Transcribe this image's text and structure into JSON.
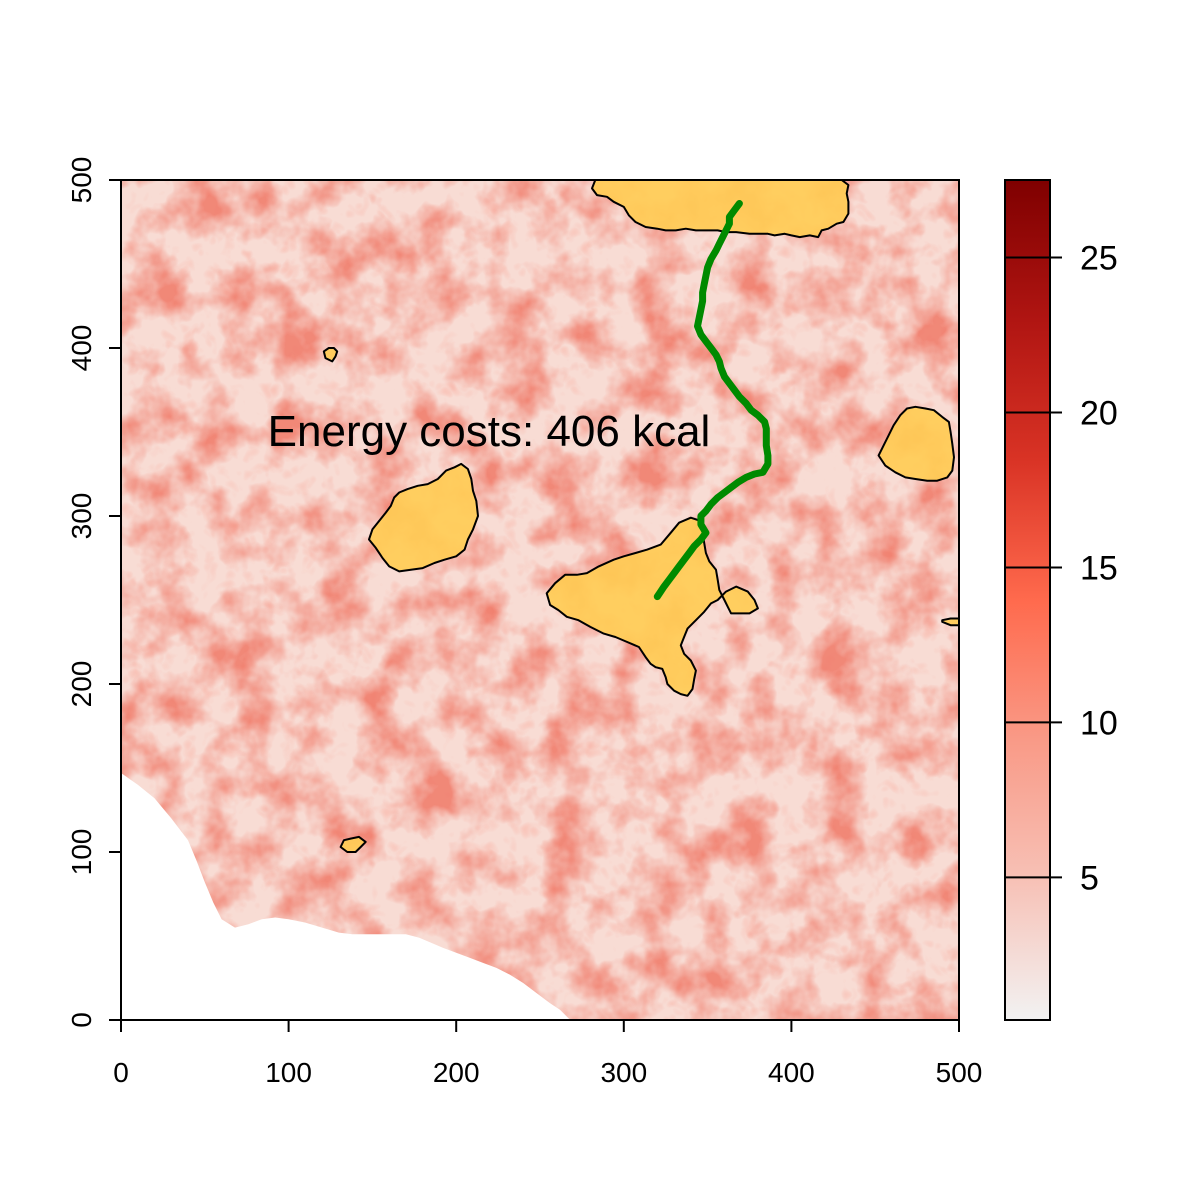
{
  "chart_data": {
    "type": "heatmap",
    "title": "",
    "xlabel": "",
    "ylabel": "",
    "xlim": [
      0,
      500
    ],
    "ylim": [
      0,
      500
    ],
    "x_ticks": [
      0,
      100,
      200,
      300,
      400,
      500
    ],
    "y_ticks": [
      0,
      100,
      200,
      300,
      400,
      500
    ],
    "x_tick_labels": [
      "0",
      "100",
      "200",
      "300",
      "400",
      "500"
    ],
    "y_tick_labels": [
      "0",
      "100",
      "200",
      "300",
      "400",
      "500"
    ],
    "annotation": "Energy costs: 406 kcal",
    "colorbar": {
      "range": [
        0.4,
        27.5
      ],
      "ticks": [
        5,
        10,
        15,
        20,
        25
      ],
      "tick_labels": [
        "5",
        "10",
        "15",
        "20",
        "25"
      ],
      "colors": [
        "#f2f2f2",
        "#f7c1b6",
        "#f99a87",
        "#ff6a4d",
        "#d93325",
        "#b01512",
        "#7f0000"
      ],
      "placement": "right"
    },
    "colors": {
      "route": "#008a00",
      "patch_fill": "#ffcc55",
      "patch_outline": "#000000",
      "no_data": "#ffffff"
    },
    "route": [
      [
        369,
        486
      ],
      [
        366,
        482
      ],
      [
        363,
        478
      ],
      [
        363,
        474
      ],
      [
        361,
        470
      ],
      [
        359,
        466
      ],
      [
        357,
        462
      ],
      [
        355,
        458
      ],
      [
        352,
        453
      ],
      [
        350,
        448
      ],
      [
        349,
        443
      ],
      [
        348,
        438
      ],
      [
        347,
        433
      ],
      [
        347,
        428
      ],
      [
        346,
        423
      ],
      [
        345,
        418
      ],
      [
        344,
        413
      ],
      [
        346,
        408
      ],
      [
        349,
        404
      ],
      [
        352,
        400
      ],
      [
        355,
        396
      ],
      [
        357,
        392
      ],
      [
        358,
        388
      ],
      [
        360,
        383
      ],
      [
        363,
        379
      ],
      [
        366,
        375
      ],
      [
        369,
        371
      ],
      [
        373,
        367
      ],
      [
        376,
        363
      ],
      [
        380,
        360
      ],
      [
        384,
        356
      ],
      [
        385,
        352
      ],
      [
        385,
        347
      ],
      [
        385,
        342
      ],
      [
        386,
        336
      ],
      [
        386,
        331
      ],
      [
        383,
        326
      ],
      [
        378,
        325
      ],
      [
        373,
        323
      ],
      [
        368,
        320
      ],
      [
        364,
        317
      ],
      [
        360,
        314
      ],
      [
        356,
        311
      ],
      [
        352,
        307
      ],
      [
        349,
        303
      ],
      [
        346,
        300
      ],
      [
        346,
        295
      ],
      [
        349,
        290
      ],
      [
        346,
        286
      ],
      [
        342,
        282
      ],
      [
        339,
        278
      ],
      [
        336,
        274
      ],
      [
        333,
        270
      ],
      [
        330,
        266
      ],
      [
        327,
        262
      ],
      [
        324,
        258
      ],
      [
        322,
        255
      ],
      [
        320,
        252
      ]
    ],
    "patches": [
      {
        "name": "patch-north",
        "outline": [
          [
            283,
            500
          ],
          [
            281,
            495
          ],
          [
            284,
            491
          ],
          [
            290,
            490
          ],
          [
            294,
            487
          ],
          [
            300,
            484
          ],
          [
            303,
            479
          ],
          [
            307,
            475
          ],
          [
            313,
            472
          ],
          [
            320,
            471
          ],
          [
            325,
            470
          ],
          [
            331,
            470
          ],
          [
            337,
            471
          ],
          [
            343,
            470
          ],
          [
            349,
            470
          ],
          [
            356,
            470
          ],
          [
            361,
            469
          ],
          [
            367,
            469
          ],
          [
            375,
            468
          ],
          [
            380,
            468
          ],
          [
            386,
            468
          ],
          [
            390,
            467
          ],
          [
            396,
            468
          ],
          [
            400,
            467
          ],
          [
            405,
            466
          ],
          [
            411,
            467
          ],
          [
            416,
            466
          ],
          [
            418,
            470
          ],
          [
            422,
            471
          ],
          [
            427,
            474
          ],
          [
            431,
            475
          ],
          [
            434,
            480
          ],
          [
            434,
            487
          ],
          [
            433,
            492
          ],
          [
            434,
            497
          ],
          [
            430,
            500
          ]
        ]
      },
      {
        "name": "patch-centre",
        "outline": [
          [
            346,
            297
          ],
          [
            340,
            299
          ],
          [
            333,
            296
          ],
          [
            328,
            290
          ],
          [
            322,
            283
          ],
          [
            314,
            280
          ],
          [
            307,
            278
          ],
          [
            300,
            276
          ],
          [
            294,
            274
          ],
          [
            285,
            270
          ],
          [
            278,
            266
          ],
          [
            272,
            265
          ],
          [
            265,
            265
          ],
          [
            259,
            260
          ],
          [
            254,
            254
          ],
          [
            256,
            247
          ],
          [
            261,
            244
          ],
          [
            266,
            240
          ],
          [
            273,
            238
          ],
          [
            280,
            234
          ],
          [
            288,
            230
          ],
          [
            295,
            228
          ],
          [
            302,
            225
          ],
          [
            309,
            222
          ],
          [
            313,
            216
          ],
          [
            316,
            212
          ],
          [
            319,
            210
          ],
          [
            323,
            209
          ],
          [
            325,
            204
          ],
          [
            326,
            200
          ],
          [
            330,
            196
          ],
          [
            334,
            194
          ],
          [
            338,
            193
          ],
          [
            341,
            197
          ],
          [
            342,
            203
          ],
          [
            343,
            208
          ],
          [
            340,
            214
          ],
          [
            336,
            218
          ],
          [
            334,
            223
          ],
          [
            336,
            228
          ],
          [
            338,
            233
          ],
          [
            343,
            238
          ],
          [
            348,
            243
          ],
          [
            352,
            248
          ],
          [
            356,
            250
          ],
          [
            361,
            255
          ],
          [
            367,
            258
          ],
          [
            374,
            255
          ],
          [
            378,
            250
          ],
          [
            380,
            245
          ],
          [
            375,
            242
          ],
          [
            368,
            242
          ],
          [
            364,
            242
          ],
          [
            362,
            246
          ],
          [
            360,
            250
          ],
          [
            357,
            256
          ],
          [
            356,
            262
          ],
          [
            355,
            268
          ],
          [
            351,
            273
          ],
          [
            349,
            278
          ],
          [
            348,
            284
          ],
          [
            347,
            290
          ]
        ]
      },
      {
        "name": "patch-west",
        "outline": [
          [
            160,
            270
          ],
          [
            166,
            267
          ],
          [
            173,
            268
          ],
          [
            180,
            269
          ],
          [
            187,
            272
          ],
          [
            193,
            274
          ],
          [
            200,
            276
          ],
          [
            205,
            280
          ],
          [
            207,
            286
          ],
          [
            210,
            292
          ],
          [
            213,
            300
          ],
          [
            212,
            309
          ],
          [
            210,
            315
          ],
          [
            209,
            322
          ],
          [
            207,
            328
          ],
          [
            203,
            331
          ],
          [
            199,
            329
          ],
          [
            194,
            327
          ],
          [
            189,
            322
          ],
          [
            183,
            319
          ],
          [
            177,
            318
          ],
          [
            171,
            316
          ],
          [
            166,
            314
          ],
          [
            163,
            311
          ],
          [
            161,
            306
          ],
          [
            158,
            302
          ],
          [
            154,
            297
          ],
          [
            150,
            292
          ],
          [
            148,
            286
          ],
          [
            152,
            281
          ],
          [
            156,
            275
          ]
        ]
      },
      {
        "name": "patch-east",
        "outline": [
          [
            474,
            365
          ],
          [
            480,
            364
          ],
          [
            485,
            363
          ],
          [
            490,
            359
          ],
          [
            494,
            356
          ],
          [
            495,
            350
          ],
          [
            496,
            343
          ],
          [
            497,
            335
          ],
          [
            496,
            327
          ],
          [
            493,
            323
          ],
          [
            487,
            321
          ],
          [
            481,
            321
          ],
          [
            474,
            322
          ],
          [
            468,
            323
          ],
          [
            462,
            326
          ],
          [
            456,
            330
          ],
          [
            452,
            336
          ],
          [
            455,
            342
          ],
          [
            458,
            348
          ],
          [
            461,
            354
          ],
          [
            465,
            360
          ],
          [
            469,
            364
          ]
        ]
      },
      {
        "name": "patch-small-nw",
        "outline": [
          [
            122,
            394
          ],
          [
            126,
            392
          ],
          [
            128,
            395
          ],
          [
            129,
            398
          ],
          [
            127,
            400
          ],
          [
            124,
            400
          ],
          [
            121,
            398
          ]
        ]
      },
      {
        "name": "patch-small-sw",
        "outline": [
          [
            131,
            103
          ],
          [
            135,
            100
          ],
          [
            140,
            100
          ],
          [
            143,
            103
          ],
          [
            146,
            106
          ],
          [
            142,
            109
          ],
          [
            137,
            108
          ],
          [
            133,
            107
          ]
        ]
      },
      {
        "name": "patch-edge-e",
        "outline": [
          [
            490,
            237
          ],
          [
            495,
            235
          ],
          [
            500,
            235
          ],
          [
            500,
            239
          ],
          [
            495,
            239
          ],
          [
            490,
            238
          ]
        ]
      }
    ],
    "no_data_region": [
      [
        0,
        147
      ],
      [
        0,
        0
      ],
      [
        268,
        0
      ],
      [
        262,
        6
      ],
      [
        256,
        10
      ],
      [
        248,
        16
      ],
      [
        240,
        22
      ],
      [
        232,
        27
      ],
      [
        224,
        31
      ],
      [
        216,
        34
      ],
      [
        208,
        37
      ],
      [
        200,
        40
      ],
      [
        192,
        43
      ],
      [
        185,
        46
      ],
      [
        178,
        49
      ],
      [
        170,
        51
      ],
      [
        162,
        51
      ],
      [
        154,
        51
      ],
      [
        146,
        51
      ],
      [
        138,
        51
      ],
      [
        130,
        52
      ],
      [
        120,
        55
      ],
      [
        110,
        58
      ],
      [
        100,
        60
      ],
      [
        92,
        61
      ],
      [
        84,
        60
      ],
      [
        76,
        57
      ],
      [
        68,
        55
      ],
      [
        60,
        60
      ],
      [
        55,
        70
      ],
      [
        50,
        82
      ],
      [
        45,
        95
      ],
      [
        40,
        107
      ],
      [
        30,
        120
      ],
      [
        20,
        132
      ],
      [
        10,
        140
      ]
    ]
  }
}
